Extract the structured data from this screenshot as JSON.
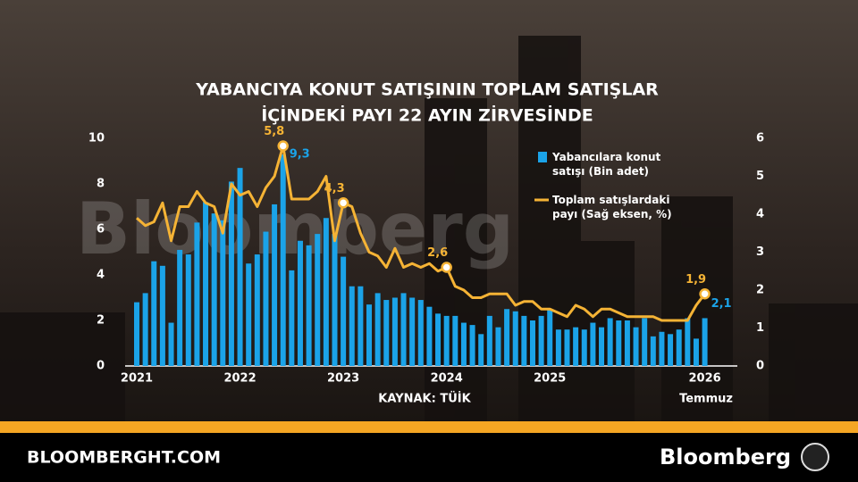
{
  "chart_data": {
    "type": "bar_line",
    "title": [
      "YABANCIYA KONUT SATIŞININ TOPLAM SATIŞLAR",
      "İÇİNDEKİ PAYI 22 AYIN ZİRVESİNDE"
    ],
    "watermark": "Bloomberg",
    "source": "KAYNAK: TÜİK",
    "annotation": "Temmuz",
    "categories": [
      "2021",
      null,
      null,
      null,
      null,
      null,
      null,
      null,
      null,
      null,
      null,
      null,
      "2022",
      null,
      null,
      null,
      null,
      null,
      null,
      null,
      null,
      null,
      null,
      null,
      "2023",
      null,
      null,
      null,
      null,
      null,
      null,
      null,
      null,
      null,
      null,
      null,
      "2024",
      null,
      null,
      null,
      null,
      null,
      null,
      null,
      null,
      null,
      null,
      null,
      "2025",
      null,
      null,
      null,
      null,
      null,
      null,
      null,
      null,
      null,
      null,
      null,
      null,
      null,
      null,
      null,
      null,
      null,
      "2026"
    ],
    "ylim": [
      0,
      10
    ],
    "yticks": [
      0,
      2,
      4,
      6,
      8,
      10
    ],
    "y2lim": [
      0,
      6
    ],
    "y2ticks": [
      0,
      1,
      2,
      3,
      4,
      5,
      6
    ],
    "series": [
      {
        "name": "Yabancılara konut satışı (Bin adet)",
        "type": "bar",
        "color": "#1ba3e8",
        "values": [
          2.8,
          3.2,
          4.6,
          4.4,
          1.9,
          5.1,
          4.9,
          6.3,
          7.2,
          6.7,
          6.4,
          8.1,
          8.7,
          4.5,
          4.9,
          5.9,
          7.1,
          9.3,
          4.2,
          5.5,
          5.3,
          5.8,
          6.5,
          5.8,
          4.8,
          3.5,
          3.5,
          2.7,
          3.2,
          2.9,
          3.0,
          3.2,
          3.0,
          2.9,
          2.6,
          2.3,
          2.2,
          2.2,
          1.9,
          1.8,
          1.4,
          2.2,
          1.7,
          2.5,
          2.4,
          2.2,
          2.0,
          2.2,
          2.5,
          1.6,
          1.6,
          1.7,
          1.6,
          1.9,
          1.7,
          2.1,
          2.0,
          2.0,
          1.7,
          2.1,
          1.3,
          1.5,
          1.4,
          1.6,
          2.1,
          1.2,
          2.1
        ],
        "value_labels": [
          null,
          null,
          null,
          null,
          null,
          null,
          null,
          null,
          null,
          null,
          null,
          null,
          null,
          null,
          null,
          null,
          null,
          "9,3",
          null,
          null,
          null,
          null,
          null,
          null,
          null,
          null,
          null,
          null,
          null,
          null,
          null,
          null,
          null,
          null,
          null,
          null,
          null,
          null,
          null,
          null,
          null,
          null,
          null,
          null,
          null,
          null,
          null,
          null,
          null,
          null,
          null,
          null,
          null,
          null,
          null,
          null,
          null,
          null,
          null,
          null,
          null,
          null,
          null,
          null,
          null,
          null,
          "2,1"
        ]
      },
      {
        "name": "Toplam satışlardaki payı (Sağ eksen, %)",
        "type": "line",
        "axis": "y2",
        "color": "#f5b335",
        "values": [
          3.9,
          3.7,
          3.8,
          4.3,
          3.3,
          4.2,
          4.2,
          4.6,
          4.3,
          4.2,
          3.5,
          4.8,
          4.5,
          4.6,
          4.2,
          4.7,
          5.0,
          5.8,
          4.4,
          4.4,
          4.4,
          4.6,
          5.0,
          3.3,
          4.3,
          4.2,
          3.5,
          3.0,
          2.9,
          2.6,
          3.1,
          2.6,
          2.7,
          2.6,
          2.7,
          2.5,
          2.6,
          2.1,
          2.0,
          1.8,
          1.8,
          1.9,
          1.9,
          1.9,
          1.6,
          1.7,
          1.7,
          1.5,
          1.5,
          1.4,
          1.3,
          1.6,
          1.5,
          1.3,
          1.5,
          1.5,
          1.4,
          1.3,
          1.3,
          1.3,
          1.3,
          1.2,
          1.2,
          1.2,
          1.2,
          1.6,
          1.9
        ],
        "value_labels": [
          null,
          null,
          null,
          null,
          null,
          null,
          null,
          null,
          null,
          null,
          null,
          null,
          null,
          null,
          null,
          null,
          null,
          "5,8",
          null,
          null,
          null,
          null,
          null,
          null,
          "4,3",
          null,
          null,
          null,
          null,
          null,
          null,
          null,
          null,
          null,
          null,
          null,
          "2,6",
          null,
          null,
          null,
          null,
          null,
          null,
          null,
          null,
          null,
          null,
          null,
          null,
          null,
          null,
          null,
          null,
          null,
          null,
          null,
          null,
          null,
          null,
          null,
          null,
          null,
          null,
          null,
          null,
          null,
          "1,9"
        ]
      }
    ]
  },
  "footer": {
    "site": "BLOOMBERGHT.COM",
    "brand": "Bloomberg"
  }
}
